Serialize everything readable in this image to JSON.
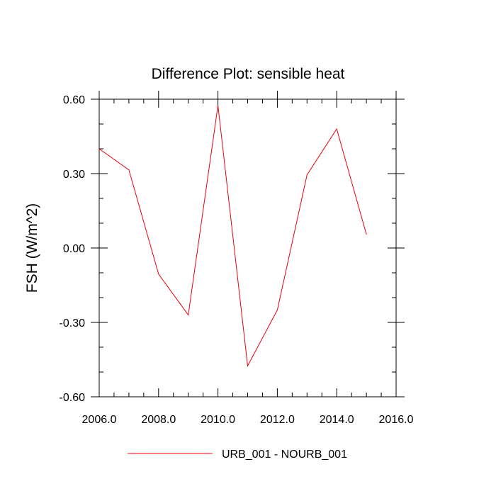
{
  "chart_data": {
    "type": "line",
    "title": "Difference Plot: sensible heat",
    "xlabel": "",
    "ylabel": "FSH  (W/m^2)",
    "xlim": [
      2006.0,
      2016.0
    ],
    "ylim": [
      -0.6,
      0.6
    ],
    "x_ticks": [
      "2006.0",
      "2008.0",
      "2010.0",
      "2012.0",
      "2014.0",
      "2016.0"
    ],
    "y_ticks": [
      "0.60",
      "0.30",
      "0.00",
      "-0.30",
      "-0.60"
    ],
    "series": [
      {
        "name": "URB_001 - NOURB_001",
        "color": "#e8000b",
        "x": [
          2006,
          2007,
          2008,
          2009,
          2010,
          2011,
          2012,
          2013,
          2014,
          2015
        ],
        "y": [
          0.4,
          0.315,
          -0.105,
          -0.27,
          0.575,
          -0.475,
          -0.25,
          0.295,
          0.48,
          0.055
        ]
      }
    ],
    "legend": {
      "placement": "bottom-center"
    },
    "grid": false
  }
}
